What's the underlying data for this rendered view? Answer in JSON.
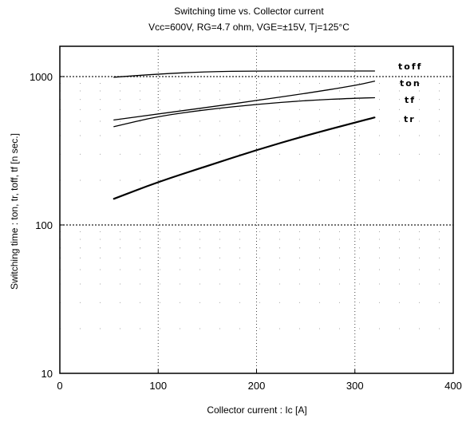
{
  "chart_data": {
    "type": "line",
    "title": "Switching time  vs. Collector current",
    "subtitle": "Vcc=600V, RG=4.7 ohm, VGE=±15V, Tj=125°C",
    "xlabel": "Collector  current  :  Ic [A]",
    "ylabel": "Switching  time  :  ton,  tr,  toff,  tf   [n sec.]",
    "xlim": [
      0,
      400
    ],
    "ylim": [
      10,
      1600
    ],
    "yscale": "log",
    "grid": true,
    "x_ticks": [
      "0",
      "100",
      "200",
      "300",
      "400"
    ],
    "y_ticks": [
      "10",
      "100",
      "1000"
    ],
    "series": [
      {
        "name": "toff",
        "x": [
          55,
          100,
          150,
          200,
          250,
          300,
          320
        ],
        "values": [
          990,
          1040,
          1080,
          1090,
          1090,
          1090,
          1090
        ],
        "stroke": 1.3
      },
      {
        "name": "ton",
        "x": [
          55,
          100,
          150,
          200,
          250,
          300,
          320
        ],
        "values": [
          510,
          560,
          620,
          690,
          770,
          870,
          930
        ],
        "stroke": 1.3
      },
      {
        "name": "tf",
        "x": [
          55,
          100,
          150,
          200,
          250,
          300,
          320
        ],
        "values": [
          460,
          540,
          600,
          650,
          690,
          715,
          720
        ],
        "stroke": 1.3
      },
      {
        "name": "tr",
        "x": [
          55,
          100,
          150,
          200,
          250,
          300,
          320
        ],
        "values": [
          150,
          195,
          250,
          320,
          400,
          490,
          530
        ],
        "stroke": 2.2
      }
    ]
  }
}
